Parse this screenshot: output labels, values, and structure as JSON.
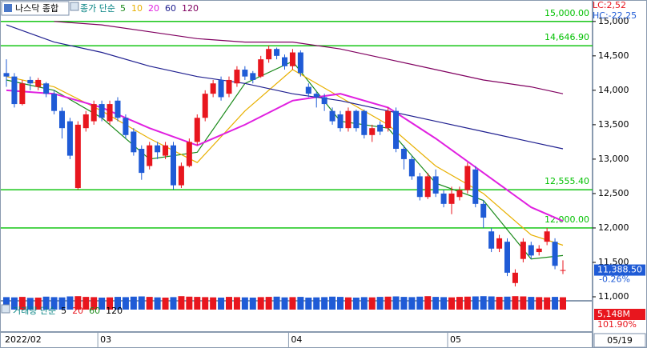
{
  "chart_data": {
    "type": "candlestick",
    "title": "나스닥 종합",
    "ma_label": "종가 단순",
    "lc_label": "LC:2,52",
    "hc_label": "HC:-22,25",
    "up_color": "#e8161e",
    "down_color": "#1f5bd6",
    "open": [
      14250,
      14200,
      13800,
      14150,
      14050,
      14100,
      13950,
      13700,
      13550,
      12580,
      13450,
      13550,
      13800,
      13550,
      13850,
      13600,
      13400,
      13150,
      12900,
      13200,
      13050,
      13200,
      12620,
      12900,
      13250,
      13600,
      13950,
      14150,
      13950,
      14100,
      14300,
      14250,
      14200,
      14450,
      14600,
      14480,
      14350,
      14550,
      14050,
      13950,
      13900,
      13700,
      13650,
      13450,
      13700,
      13700,
      13350,
      13500,
      13450,
      13700,
      13150,
      13000,
      12750,
      12450,
      12750,
      12500,
      12350,
      12450,
      12550,
      12850,
      12350,
      11950,
      11700,
      11800,
      11200,
      11550,
      11750,
      11650,
      11800,
      11800,
      11380
    ],
    "high": [
      14450,
      14250,
      14150,
      14200,
      14180,
      14120,
      14000,
      13750,
      13600,
      13550,
      13700,
      13850,
      13850,
      13850,
      13900,
      13650,
      13450,
      13200,
      13250,
      13250,
      13250,
      13250,
      12950,
      13300,
      13650,
      14000,
      14150,
      14200,
      14200,
      14350,
      14350,
      14280,
      14500,
      14650,
      14620,
      14520,
      14600,
      14580,
      14100,
      13980,
      13950,
      13750,
      13700,
      13750,
      13720,
      13720,
      13500,
      13550,
      13750,
      13750,
      13200,
      13050,
      12800,
      12800,
      12850,
      12550,
      12600,
      12600,
      12950,
      12900,
      12400,
      12000,
      11900,
      11850,
      11400,
      11850,
      11800,
      11750,
      12000,
      11850,
      11530
    ],
    "low": [
      14050,
      13750,
      13780,
      14000,
      14000,
      13900,
      13650,
      13300,
      13000,
      12560,
      13400,
      13500,
      13550,
      13500,
      13550,
      13300,
      13050,
      12700,
      12850,
      13000,
      13000,
      12560,
      12580,
      12880,
      13200,
      13550,
      13900,
      13850,
      13900,
      14050,
      14150,
      14100,
      14180,
      14400,
      14450,
      14300,
      14300,
      14200,
      13900,
      13750,
      13700,
      13500,
      13400,
      13400,
      13400,
      13300,
      13250,
      13350,
      13400,
      13100,
      12850,
      12700,
      12400,
      12420,
      12450,
      12300,
      12200,
      12400,
      12500,
      12300,
      12000,
      11650,
      11650,
      11300,
      11150,
      11500,
      11550,
      11600,
      11750,
      11400,
      11330
    ],
    "close": [
      14200,
      13800,
      14100,
      14100,
      14150,
      13950,
      13700,
      13450,
      13050,
      13500,
      13650,
      13800,
      13600,
      13800,
      13600,
      13350,
      13100,
      12800,
      13200,
      13100,
      13200,
      12620,
      12900,
      13250,
      13600,
      13950,
      14100,
      13900,
      14150,
      14300,
      14200,
      14150,
      14450,
      14600,
      14500,
      14350,
      14550,
      14250,
      13950,
      13900,
      13800,
      13550,
      13450,
      13700,
      13450,
      13350,
      13450,
      13400,
      13700,
      13150,
      13000,
      12750,
      12450,
      12750,
      12500,
      12350,
      12500,
      12550,
      12900,
      12350,
      12150,
      11700,
      11850,
      11350,
      11350,
      11800,
      11600,
      11700,
      11950,
      11450,
      11388.5
    ],
    "x_labels": [
      {
        "index": 0,
        "label": "2022/02"
      },
      {
        "index": 12,
        "label": "03"
      },
      {
        "index": 36,
        "label": "04"
      },
      {
        "index": 56,
        "label": "05"
      }
    ],
    "last_date": "05/19",
    "ylim": [
      11000,
      15300
    ],
    "yticks": [
      {
        "value": 11000,
        "label": "11,000"
      },
      {
        "value": 11500,
        "label": "11,500"
      },
      {
        "value": 12000,
        "label": "12,000"
      },
      {
        "value": 12500,
        "label": "12,500"
      },
      {
        "value": 13000,
        "label": "13,000"
      },
      {
        "value": 13500,
        "label": "13,500"
      },
      {
        "value": 14000,
        "label": "14,000"
      },
      {
        "value": 14500,
        "label": "14,500"
      },
      {
        "value": 15000,
        "label": "15,000"
      }
    ],
    "hline_color": "#00c000",
    "hlines": [
      {
        "value": 15000,
        "label": "15,000.00"
      },
      {
        "value": 14646.9,
        "label": "14,646.90"
      },
      {
        "value": 12555.4,
        "label": "12,555.40"
      },
      {
        "value": 12000,
        "label": "12,000.00"
      }
    ],
    "moving_averages": [
      {
        "name": "5",
        "color": "#1a8a1a",
        "index": [
          0,
          6,
          12,
          18,
          24,
          30,
          36,
          42,
          48,
          54,
          60,
          66,
          70
        ],
        "values": [
          14150,
          14000,
          13600,
          13000,
          13100,
          14100,
          14420,
          13550,
          13450,
          12650,
          12400,
          11550,
          11600
        ]
      },
      {
        "name": "10",
        "color": "#e8b000",
        "index": [
          0,
          6,
          12,
          18,
          24,
          30,
          36,
          42,
          48,
          54,
          60,
          66,
          70
        ],
        "values": [
          14200,
          14050,
          13700,
          13300,
          12950,
          13700,
          14300,
          13900,
          13500,
          12900,
          12500,
          11900,
          11750
        ]
      },
      {
        "name": "20",
        "color": "#e020e0",
        "index": [
          0,
          6,
          12,
          18,
          24,
          30,
          36,
          42,
          48,
          54,
          60,
          66,
          70
        ],
        "values": [
          14000,
          13950,
          13750,
          13450,
          13200,
          13500,
          13850,
          13950,
          13750,
          13300,
          12800,
          12300,
          12100
        ]
      },
      {
        "name": "60",
        "color": "#202090",
        "index": [
          0,
          6,
          12,
          18,
          24,
          30,
          36,
          42,
          48,
          54,
          60,
          66,
          70
        ],
        "values": [
          14950,
          14700,
          14550,
          14350,
          14200,
          14100,
          13950,
          13850,
          13700,
          13550,
          13400,
          13250,
          13150
        ]
      },
      {
        "name": "120",
        "color": "#800060",
        "index": [
          0,
          6,
          12,
          18,
          24,
          30,
          36,
          42,
          48,
          54,
          60,
          66,
          70
        ],
        "values": [
          null,
          15000,
          14950,
          14850,
          14750,
          14700,
          14700,
          14600,
          14450,
          14300,
          14150,
          14050,
          13950
        ]
      }
    ],
    "last_price_label": "11,388.50",
    "change_label": "-0.26%",
    "volume": {
      "label": "거래량 단순",
      "ma_names": [
        {
          "name": "5",
          "color": "#000000"
        },
        {
          "name": "20",
          "color": "#e8161e"
        },
        {
          "name": "60",
          "color": "#1a8a1a"
        },
        {
          "name": "120",
          "color": "#000000"
        }
      ],
      "ylim": [
        0,
        6000
      ],
      "values": [
        5200,
        5100,
        5300,
        4900,
        5000,
        5400,
        5200,
        5100,
        5500,
        5600,
        5300,
        5200,
        5000,
        5100,
        5300,
        5200,
        5400,
        5500,
        5300,
        5100,
        5000,
        5200,
        5600,
        5400,
        5300,
        5200,
        5100,
        5000,
        5300,
        5200,
        5100,
        5000,
        5200,
        5300,
        5400,
        5100,
        5200,
        5300,
        5000,
        5100,
        5200,
        5400,
        5300,
        5100,
        5000,
        5200,
        5100,
        5300,
        5400,
        5500,
        5300,
        5200,
        5400,
        5600,
        5300,
        5200,
        5100,
        5300,
        5400,
        5500,
        5600,
        5500,
        5300,
        5400,
        5600,
        5500,
        5300,
        5200,
        5100,
        5300,
        5148
      ],
      "last_label": "5,148M",
      "ratio_label": "101.90%"
    }
  }
}
